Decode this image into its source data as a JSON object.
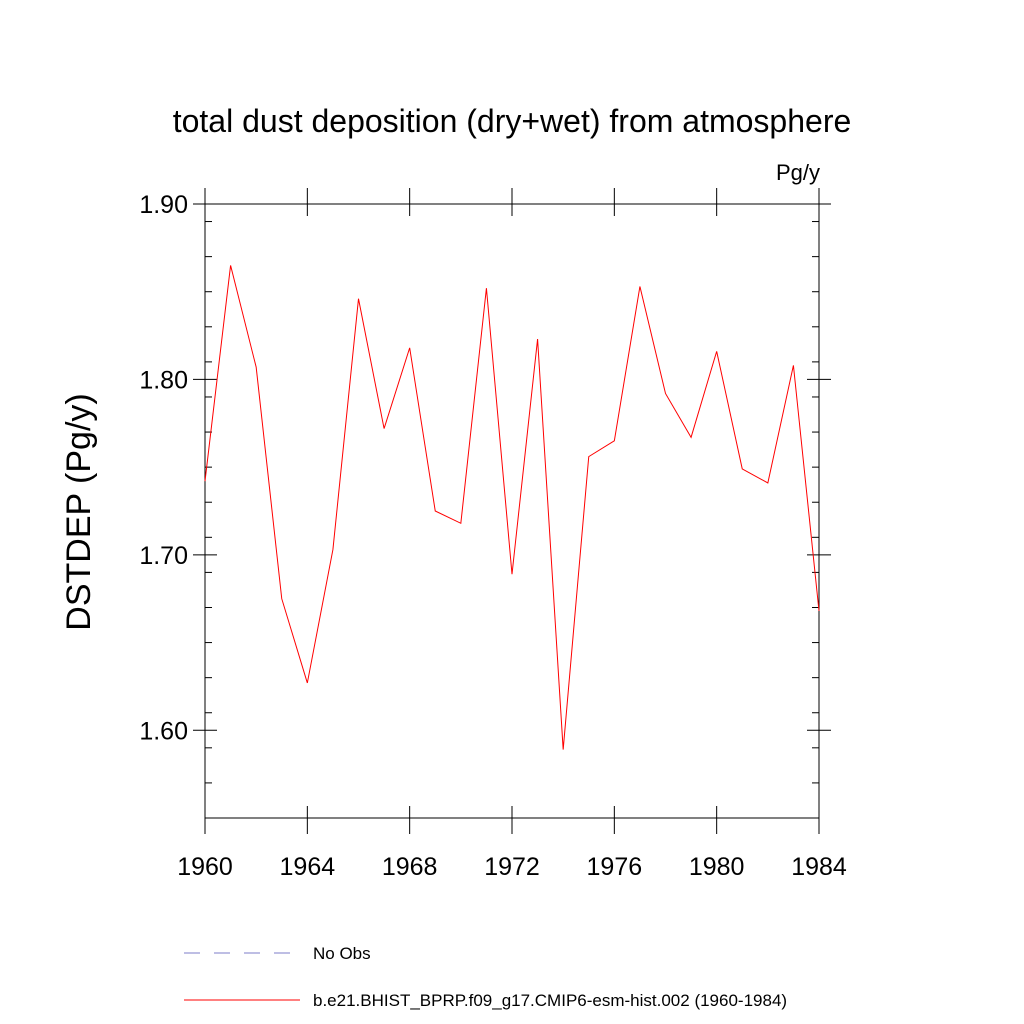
{
  "chart_data": {
    "type": "line",
    "title": "total dust deposition (dry+wet) from atmosphere",
    "units_label": "Pg/y",
    "ylabel": "DSTDEP  (Pg/y)",
    "xlabel": "",
    "xlim": [
      1960,
      1984
    ],
    "ylim": [
      1.55,
      1.9
    ],
    "x_ticks": [
      1960,
      1964,
      1968,
      1972,
      1976,
      1980,
      1984
    ],
    "x_tick_labels": [
      "1960",
      "1964",
      "1968",
      "1972",
      "1976",
      "1980",
      "1984"
    ],
    "y_ticks": [
      1.6,
      1.7,
      1.8,
      1.9
    ],
    "y_tick_labels": [
      "1.60",
      "1.70",
      "1.80",
      "1.90"
    ],
    "y_minor_step": 0.02,
    "grid": false,
    "legend_position": "bottom-left",
    "x": [
      1960,
      1961,
      1962,
      1963,
      1964,
      1965,
      1966,
      1967,
      1968,
      1969,
      1970,
      1971,
      1972,
      1973,
      1974,
      1975,
      1976,
      1977,
      1978,
      1979,
      1980,
      1981,
      1982,
      1983,
      1984
    ],
    "series": [
      {
        "name": "b.e21.BHIST_BPRP.f09_g17.CMIP6-esm-hist.002 (1960-1984)",
        "color": "#ff0000",
        "style": "solid",
        "values": [
          1.742,
          1.865,
          1.807,
          1.675,
          1.627,
          1.703,
          1.846,
          1.772,
          1.818,
          1.725,
          1.718,
          1.852,
          1.689,
          1.823,
          1.589,
          1.756,
          1.765,
          1.853,
          1.792,
          1.767,
          1.816,
          1.749,
          1.741,
          1.808,
          1.668
        ]
      }
    ],
    "legend": [
      {
        "label": "No Obs",
        "color": "#7d7dc8",
        "style": "dashed"
      },
      {
        "label": "b.e21.BHIST_BPRP.f09_g17.CMIP6-esm-hist.002 (1960-1984)",
        "color": "#ff0000",
        "style": "solid"
      }
    ]
  }
}
